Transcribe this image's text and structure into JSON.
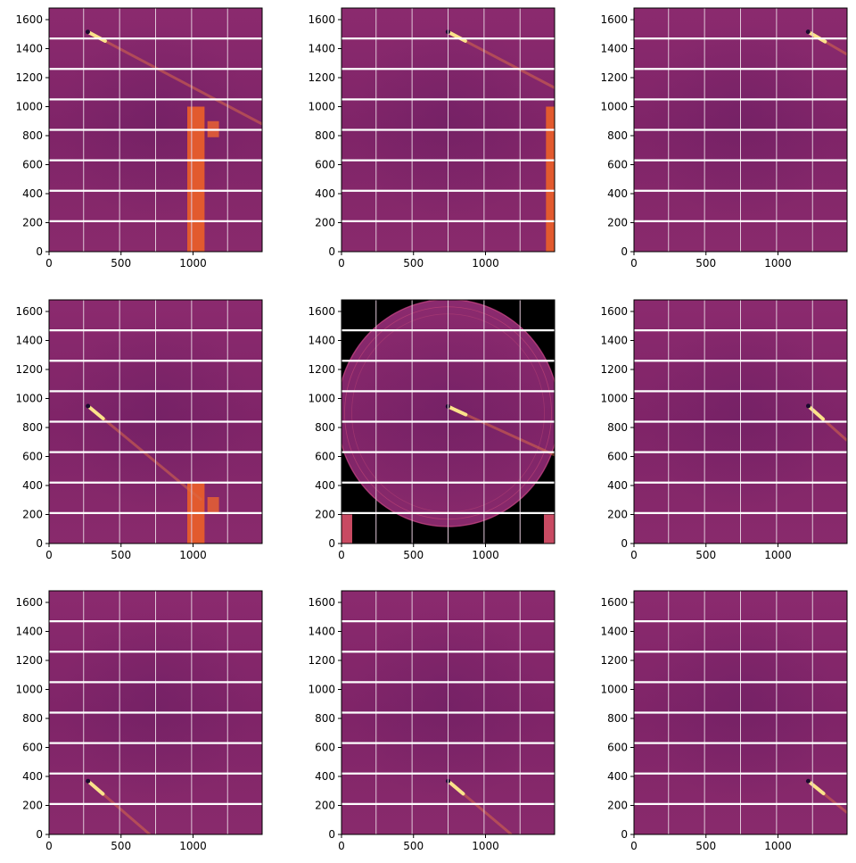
{
  "chart_data": {
    "type": "heatmap",
    "grid": "3x3",
    "colormap": "inferno",
    "x_ticks": [
      0,
      500,
      1000
    ],
    "y_ticks": [
      0,
      200,
      400,
      600,
      800,
      1000,
      1200,
      1400,
      1600
    ],
    "xlim": [
      0,
      1480
    ],
    "ylim": [
      0,
      1680
    ],
    "panel_gaps": {
      "horizontal_rows_y": [
        210,
        420,
        630,
        840,
        1050,
        1260,
        1470
      ],
      "vertical_cols_x": [
        240,
        490,
        740,
        990,
        1240
      ]
    },
    "panels": [
      {
        "beam_center": [
          280,
          1510
        ],
        "streak_end": [
          1480,
          880
        ],
        "shadow": "stop-bottom"
      },
      {
        "beam_center": [
          750,
          1510
        ],
        "streak_end": [
          1480,
          1130
        ],
        "shadow": "stop-right"
      },
      {
        "beam_center": [
          1220,
          1510
        ],
        "streak_end": [
          1480,
          1360
        ],
        "shadow": "none"
      },
      {
        "beam_center": [
          280,
          940
        ],
        "streak_end": [
          1060,
          300
        ],
        "shadow": "stop-bottom"
      },
      {
        "beam_center": [
          750,
          940
        ],
        "streak_end": [
          1480,
          610
        ],
        "shadow": "rings"
      },
      {
        "beam_center": [
          1220,
          940
        ],
        "streak_end": [
          1480,
          710
        ],
        "shadow": "none"
      },
      {
        "beam_center": [
          280,
          360
        ],
        "streak_end": [
          700,
          0
        ],
        "shadow": "none"
      },
      {
        "beam_center": [
          750,
          360
        ],
        "streak_end": [
          1180,
          0
        ],
        "shadow": "none"
      },
      {
        "beam_center": [
          1220,
          360
        ],
        "streak_end": [
          1480,
          150
        ],
        "shadow": "none"
      }
    ]
  }
}
